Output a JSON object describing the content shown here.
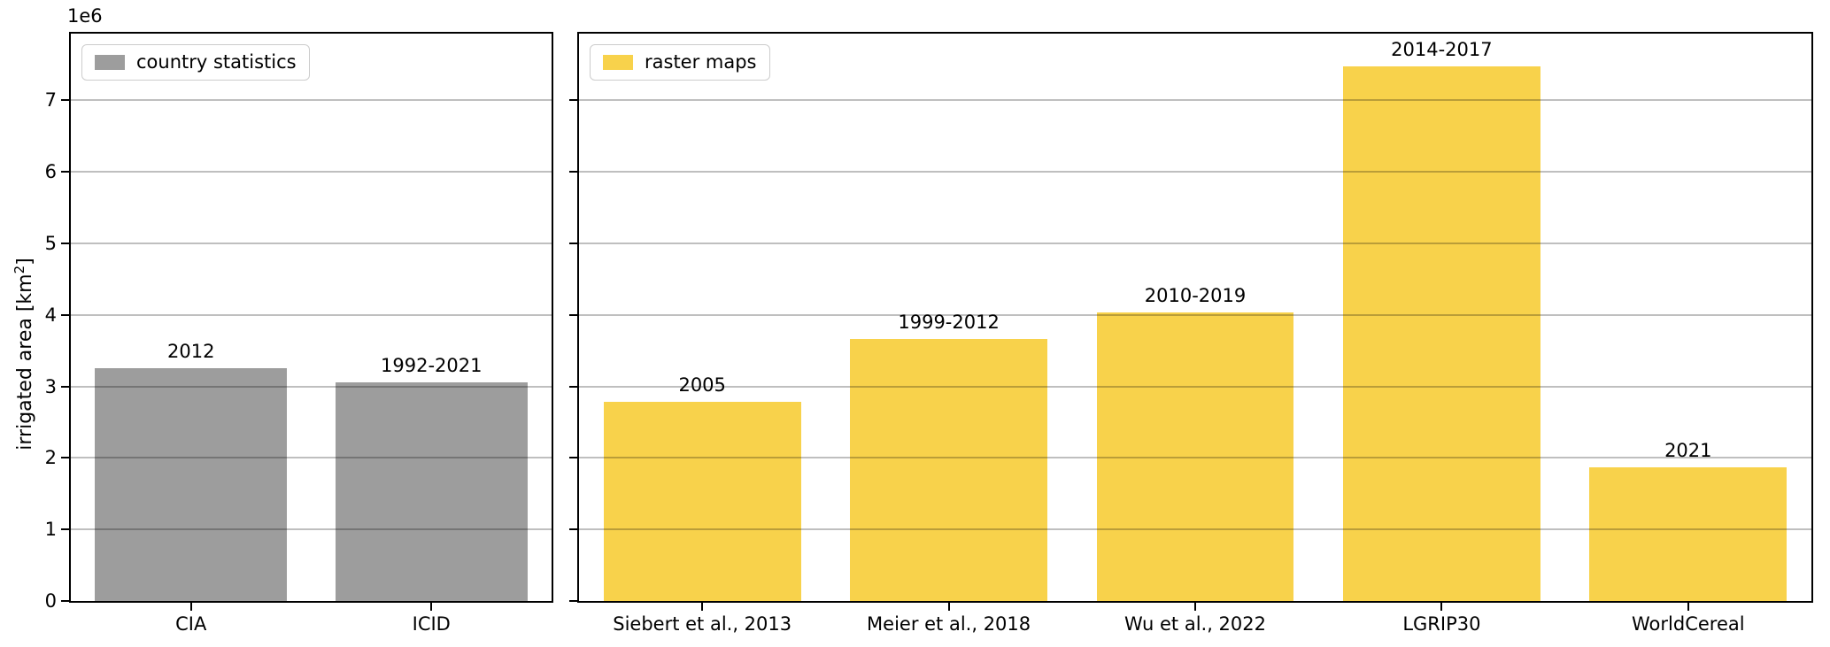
{
  "figure": {
    "background": "#ffffff",
    "spine_color": "#000000",
    "grid_color": "#b5b5b5"
  },
  "y_axis": {
    "label_prefix": "irrigated area [km",
    "label_sup": "2",
    "label_suffix": "]",
    "offset_text": "1e6",
    "ticks": [
      0,
      1,
      2,
      3,
      4,
      5,
      6,
      7
    ],
    "max_value": 7934000
  },
  "chart_data": [
    {
      "type": "bar",
      "panel": "left",
      "legend": {
        "label": "country statistics",
        "color": "#9d9d9d",
        "position": "upper left"
      },
      "categories": [
        "CIA",
        "ICID"
      ],
      "values": [
        3250000,
        3060000
      ],
      "bar_labels": [
        "2012",
        "1992-2021"
      ],
      "bar_color": "#9d9d9d",
      "ylabel": "irrigated area [km2]",
      "ylim": [
        0,
        7934000
      ],
      "yticks_scale": "1e6",
      "grid": true,
      "show_ytick_labels": true
    },
    {
      "type": "bar",
      "panel": "right",
      "legend": {
        "label": "raster maps",
        "color": "#f8d24b",
        "position": "upper left"
      },
      "categories": [
        "Siebert et al., 2013",
        "Meier et al., 2018",
        "Wu et al., 2022",
        "LGRIP30",
        "WorldCereal"
      ],
      "values": [
        2790000,
        3670000,
        4030000,
        7480000,
        1870000
      ],
      "bar_labels": [
        "2005",
        "1999-2012",
        "2010-2019",
        "2014-2017",
        "2021"
      ],
      "bar_color": "#f8d24b",
      "ylim": [
        0,
        7934000
      ],
      "yticks_scale": "1e6",
      "grid": true,
      "show_ytick_labels": false
    }
  ]
}
